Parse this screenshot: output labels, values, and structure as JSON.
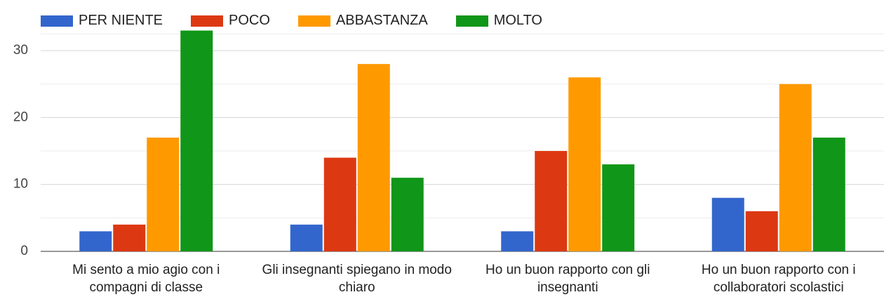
{
  "chart_data": {
    "type": "bar",
    "categories": [
      "Mi sento a mio agio con i compagni di classe",
      "Gli insegnanti spiegano in modo chiaro",
      "Ho un buon rapporto con gli insegnanti",
      "Ho un buon rapporto con i collaboratori scolastici"
    ],
    "series": [
      {
        "name": "PER NIENTE",
        "color": "#3366cc",
        "values": [
          3,
          4,
          3,
          8
        ]
      },
      {
        "name": "POCO",
        "color": "#dc3912",
        "values": [
          4,
          14,
          15,
          6
        ]
      },
      {
        "name": "ABBASTANZA",
        "color": "#ff9900",
        "values": [
          17,
          28,
          26,
          25
        ]
      },
      {
        "name": "MOLTO",
        "color": "#109618",
        "values": [
          33,
          11,
          13,
          17
        ]
      }
    ],
    "ylim": [
      0,
      35
    ],
    "yticks": [
      0,
      10,
      20,
      30
    ],
    "grid": true,
    "legend": "top"
  }
}
